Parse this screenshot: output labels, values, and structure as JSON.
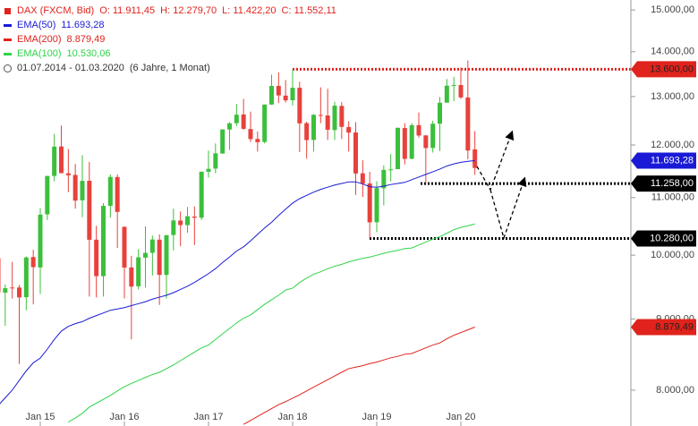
{
  "chart_data": {
    "type": "candlestick",
    "instrument": "DAX (FXCM, Bid)",
    "ohlc_labels": [
      "O: 11.911,45",
      "H: 12.279,70",
      "L: 11.422,20",
      "C: 11.552,11"
    ],
    "period": "01.07.2014 - 01.03.2020",
    "period_length": "(6 Jahre, 1 Monat)",
    "categories": [
      "2014-07",
      "2014-08",
      "2014-09",
      "2014-10",
      "2014-11",
      "2014-12",
      "2015-01",
      "2015-02",
      "2015-03",
      "2015-04",
      "2015-05",
      "2015-06",
      "2015-07",
      "2015-08",
      "2015-09",
      "2015-10",
      "2015-11",
      "2015-12",
      "2016-01",
      "2016-02",
      "2016-03",
      "2016-04",
      "2016-05",
      "2016-06",
      "2016-07",
      "2016-08",
      "2016-09",
      "2016-10",
      "2016-11",
      "2016-12",
      "2017-01",
      "2017-02",
      "2017-03",
      "2017-04",
      "2017-05",
      "2017-06",
      "2017-07",
      "2017-08",
      "2017-09",
      "2017-10",
      "2017-11",
      "2017-12",
      "2018-01",
      "2018-02",
      "2018-03",
      "2018-04",
      "2018-05",
      "2018-06",
      "2018-07",
      "2018-08",
      "2018-09",
      "2018-10",
      "2018-11",
      "2018-12",
      "2019-01",
      "2019-02",
      "2019-03",
      "2019-04",
      "2019-05",
      "2019-06",
      "2019-07",
      "2019-08",
      "2019-09",
      "2019-10",
      "2019-11",
      "2019-12",
      "2020-01",
      "2020-02",
      "2020-03"
    ],
    "open": [
      9950,
      9400,
      9480,
      9480,
      9330,
      9970,
      9800,
      10700,
      11400,
      11970,
      11450,
      11420,
      10950,
      11310,
      10260,
      9660,
      10850,
      11380,
      10480,
      9800,
      9500,
      9960,
      10040,
      10260,
      9680,
      10340,
      10590,
      10510,
      10660,
      10640,
      11480,
      11540,
      11830,
      12310,
      12440,
      12620,
      12320,
      12120,
      12060,
      12830,
      13230,
      13020,
      12920,
      13190,
      12440,
      12100,
      12610,
      12600,
      12300,
      12800,
      12360,
      12250,
      11450,
      11260,
      10560,
      11170,
      11520,
      11530,
      12340,
      11730,
      12400,
      12190,
      11940,
      12430,
      12870,
      13240,
      13250,
      12980,
      11911.45
    ],
    "high": [
      9990,
      9530,
      9890,
      9520,
      9980,
      10090,
      10810,
      11400,
      12220,
      12390,
      11920,
      11630,
      11800,
      11670,
      10500,
      10900,
      11430,
      11430,
      10490,
      9990,
      10100,
      10490,
      10330,
      10350,
      10340,
      10800,
      10750,
      10830,
      10840,
      11480,
      11890,
      12030,
      12310,
      12460,
      12840,
      12950,
      12680,
      12270,
      12830,
      13480,
      13530,
      13360,
      13600,
      13320,
      12470,
      12630,
      13200,
      13170,
      12890,
      12880,
      12480,
      12460,
      11700,
      11480,
      11300,
      11600,
      11820,
      12350,
      12440,
      12440,
      12660,
      12200,
      12490,
      12990,
      13380,
      13430,
      13640,
      13800,
      12279.7
    ],
    "low": [
      9380,
      8900,
      9310,
      8355,
      9130,
      9220,
      9380,
      10600,
      11300,
      11450,
      11100,
      10800,
      10650,
      9340,
      9325,
      9340,
      10640,
      10120,
      9310,
      8700,
      9450,
      9480,
      9670,
      9210,
      9310,
      10080,
      10150,
      10380,
      10170,
      10600,
      11370,
      11450,
      11830,
      11900,
      12380,
      12300,
      12060,
      11870,
      12030,
      12820,
      12860,
      12870,
      12810,
      11860,
      11730,
      11870,
      12440,
      12100,
      12100,
      12120,
      11870,
      11050,
      11010,
      10280,
      10390,
      10860,
      11300,
      11530,
      11620,
      11720,
      12150,
      11260,
      11850,
      11880,
      12870,
      12900,
      12950,
      11720,
      11422.2
    ],
    "close": [
      9407,
      9470,
      9474,
      9326,
      9963,
      9805,
      10694,
      11401,
      11966,
      11454,
      11413,
      10945,
      11308,
      10259,
      9660,
      10850,
      11382,
      10743,
      9798,
      9495,
      9965,
      10039,
      10263,
      9680,
      10337,
      10592,
      10511,
      10665,
      10640,
      11481,
      11535,
      11834,
      12313,
      12438,
      12615,
      12325,
      12118,
      12056,
      12829,
      13230,
      13024,
      12918,
      13189,
      12436,
      12097,
      12612,
      12605,
      12306,
      12806,
      12364,
      12247,
      11447,
      11257,
      10559,
      11173,
      11516,
      11526,
      12345,
      11727,
      12399,
      12189,
      11939,
      12428,
      12867,
      13236,
      13249,
      12981,
      11890,
      11552.11
    ],
    "up_color": "#3cbf3c",
    "down_color": "#e8413c",
    "series": [
      {
        "name": "EMA(50)",
        "color": "#1a1ad6",
        "end_label": "11.693,28",
        "values": [
          7800,
          7900,
          8000,
          8130,
          8260,
          8370,
          8436,
          8560,
          8700,
          8820,
          8890,
          8930,
          8960,
          9010,
          9050,
          9090,
          9130,
          9150,
          9170,
          9200,
          9230,
          9260,
          9300,
          9330,
          9360,
          9400,
          9450,
          9500,
          9560,
          9630,
          9700,
          9780,
          9880,
          9970,
          10070,
          10140,
          10240,
          10350,
          10460,
          10560,
          10680,
          10790,
          10900,
          10980,
          11040,
          11100,
          11150,
          11190,
          11230,
          11260,
          11290,
          11290,
          11250,
          11200,
          11190,
          11210,
          11240,
          11260,
          11280,
          11330,
          11380,
          11430,
          11480,
          11530,
          11590,
          11630,
          11660,
          11680,
          11693.28
        ]
      },
      {
        "name": "EMA(200)",
        "color": "#e0231c",
        "end_label": "8.879,49",
        "values": [
          null,
          null,
          null,
          null,
          null,
          null,
          null,
          null,
          null,
          null,
          null,
          null,
          null,
          null,
          null,
          null,
          null,
          null,
          null,
          null,
          null,
          null,
          null,
          null,
          null,
          null,
          null,
          null,
          null,
          null,
          null,
          null,
          null,
          null,
          null,
          7560,
          7610,
          7660,
          7710,
          7760,
          7810,
          7850,
          7895,
          7940,
          7990,
          8040,
          8090,
          8140,
          8190,
          8240,
          8290,
          8310,
          8330,
          8360,
          8380,
          8410,
          8440,
          8460,
          8490,
          8500,
          8540,
          8580,
          8620,
          8650,
          8710,
          8760,
          8800,
          8840,
          8879.49
        ]
      },
      {
        "name": "EMA(100)",
        "color": "#2fd44a",
        "end_label": "10.530,06",
        "values": [
          null,
          null,
          null,
          null,
          null,
          null,
          null,
          null,
          null,
          null,
          7590,
          7640,
          7700,
          7780,
          7830,
          7880,
          7930,
          7990,
          8047,
          8090,
          8130,
          8170,
          8210,
          8240,
          8290,
          8340,
          8400,
          8460,
          8520,
          8580,
          8620,
          8700,
          8780,
          8860,
          8940,
          9010,
          9060,
          9140,
          9220,
          9290,
          9360,
          9440,
          9470,
          9560,
          9630,
          9690,
          9730,
          9780,
          9820,
          9850,
          9890,
          9920,
          9950,
          9970,
          10000,
          10030,
          10060,
          10080,
          10110,
          10120,
          10170,
          10220,
          10270,
          10310,
          10370,
          10430,
          10470,
          10500,
          10530.06
        ]
      }
    ],
    "levels": [
      {
        "value": 13600,
        "label": "13.600,00",
        "color": "#e0231c"
      },
      {
        "value": 11258,
        "label": "11.258,00",
        "color": "#000000"
      },
      {
        "value": 10280,
        "label": "10.280,00",
        "color": "#000000"
      }
    ],
    "log_y": true,
    "ylim": [
      7540,
      15250
    ],
    "yticks": [
      {
        "value": 8000,
        "label": "8.000,00"
      },
      {
        "value": 9000,
        "label": "9.000,00"
      },
      {
        "value": 10000,
        "label": "10.000,00"
      },
      {
        "value": 11000,
        "label": "11.000,00"
      },
      {
        "value": 12000,
        "label": "12.000,00"
      },
      {
        "value": 13000,
        "label": "13.000,00"
      },
      {
        "value": 14000,
        "label": "14.000,00"
      },
      {
        "value": 15000,
        "label": "15.000,00"
      }
    ],
    "xticks": [
      {
        "value": "2015-01",
        "label": "Jan 15"
      },
      {
        "value": "2016-01",
        "label": "Jan 16"
      },
      {
        "value": "2017-01",
        "label": "Jan 17"
      },
      {
        "value": "2018-01",
        "label": "Jan 18"
      },
      {
        "value": "2019-01",
        "label": "Jan 19"
      },
      {
        "value": "2020-01",
        "label": "Jan 20"
      }
    ]
  }
}
